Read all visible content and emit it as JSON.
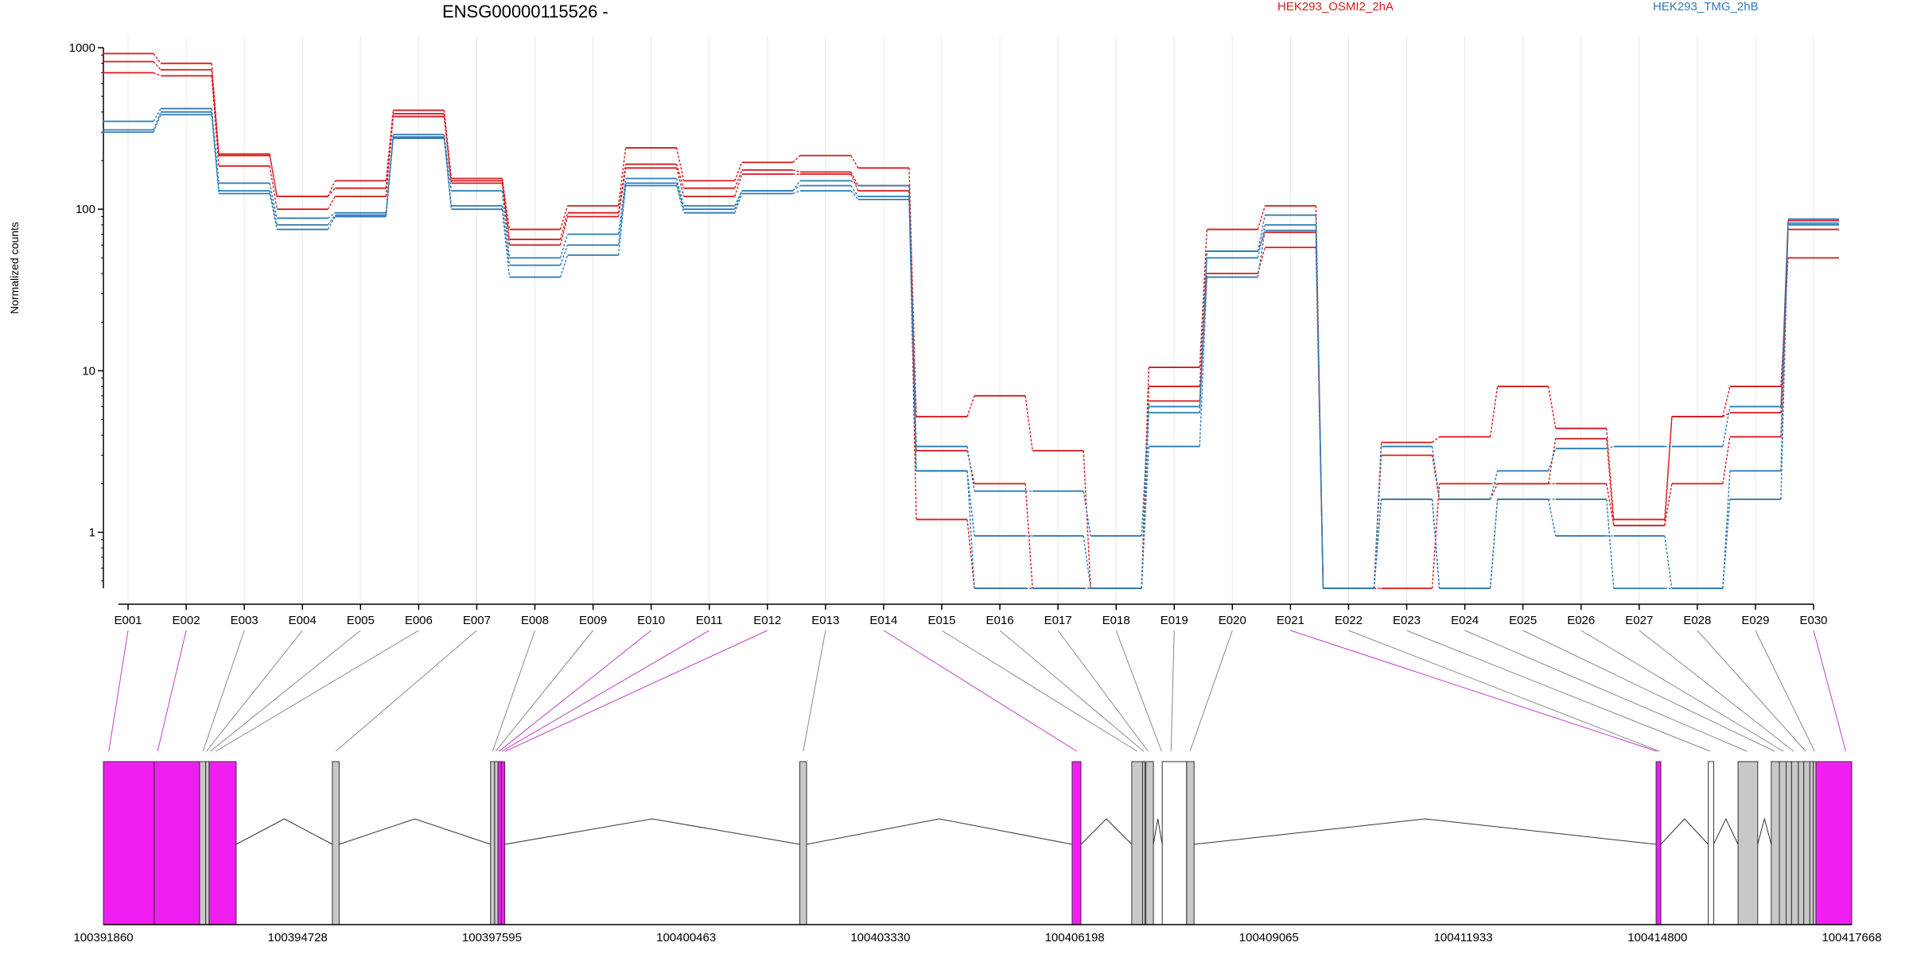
{
  "chart_data": {
    "type": "line",
    "title": "ENSG00000115526 -",
    "ylabel": "Normalized counts",
    "y_scale": "log",
    "y_ticks": [
      "1",
      "10",
      "100",
      "1000"
    ],
    "y_tick_values": [
      1,
      10,
      100,
      1000
    ],
    "ylim": [
      0.45,
      1000
    ],
    "grid": "faint vertical lines at exon bins",
    "legend": [
      {
        "name": "HEK293_OSMI2_2hA",
        "color": "#d7191c"
      },
      {
        "name": "HEK293_TMG_2hB",
        "color": "#2c7bb6"
      }
    ],
    "categories": [
      "E001",
      "E002",
      "E003",
      "E004",
      "E005",
      "E006",
      "E007",
      "E008",
      "E009",
      "E010",
      "E011",
      "E012",
      "E013",
      "E014",
      "E015",
      "E016",
      "E017",
      "E018",
      "E019",
      "E020",
      "E021",
      "E022",
      "E023",
      "E024",
      "E025",
      "E026",
      "E027",
      "E028",
      "E029",
      "E030"
    ],
    "series": [
      {
        "group": "HEK293_OSMI2_2hA",
        "color": "#d7191c",
        "values": [
          920,
          800,
          220,
          120,
          150,
          410,
          155,
          75,
          105,
          240,
          150,
          195,
          215,
          180,
          5.2,
          7.0,
          3.2,
          0.45,
          10.5,
          75,
          105,
          0.45,
          3.6,
          3.9,
          8.0,
          4.4,
          1.2,
          5.2,
          8.0,
          50
        ]
      },
      {
        "group": "HEK293_OSMI2_2hA",
        "color": "#d7191c",
        "values": [
          820,
          730,
          215,
          120,
          135,
          390,
          150,
          65,
          95,
          190,
          135,
          175,
          170,
          140,
          3.2,
          2.0,
          0.45,
          0.45,
          8.0,
          55,
          72,
          0.45,
          3.0,
          1.6,
          2.0,
          3.8,
          1.1,
          5.2,
          5.5,
          85
        ]
      },
      {
        "group": "HEK293_OSMI2_2hA",
        "color": "#d7191c",
        "values": [
          700,
          670,
          185,
          100,
          120,
          375,
          145,
          60,
          90,
          180,
          120,
          165,
          165,
          130,
          1.2,
          0.45,
          0.45,
          0.45,
          6.5,
          40,
          58,
          0.45,
          0.45,
          2.0,
          2.0,
          2.0,
          1.1,
          2.0,
          3.9,
          75
        ]
      },
      {
        "group": "HEK293_TMG_2hB",
        "color": "#2c7bb6",
        "values": [
          350,
          420,
          145,
          88,
          95,
          290,
          130,
          50,
          70,
          155,
          105,
          130,
          150,
          140,
          3.4,
          1.8,
          1.8,
          0.95,
          6.0,
          55,
          92,
          0.45,
          3.4,
          1.6,
          2.4,
          3.3,
          3.4,
          3.4,
          6.0,
          87
        ]
      },
      {
        "group": "HEK293_TMG_2hB",
        "color": "#2c7bb6",
        "values": [
          310,
          400,
          130,
          80,
          92,
          280,
          105,
          45,
          60,
          145,
          100,
          130,
          140,
          120,
          2.4,
          0.95,
          0.95,
          0.45,
          5.5,
          50,
          80,
          0.45,
          1.6,
          0.45,
          1.6,
          0.95,
          0.95,
          0.45,
          1.6,
          80
        ]
      },
      {
        "group": "HEK293_TMG_2hB",
        "color": "#2c7bb6",
        "values": [
          300,
          385,
          125,
          75,
          90,
          275,
          100,
          38,
          52,
          140,
          95,
          125,
          130,
          115,
          2.4,
          0.45,
          0.45,
          0.45,
          3.4,
          38,
          74,
          0.45,
          1.6,
          0.45,
          1.6,
          1.6,
          0.45,
          0.45,
          2.4,
          82
        ]
      }
    ],
    "gene_model": {
      "coordinate_ticks": [
        "100391860",
        "100394728",
        "100397595",
        "100400463",
        "100403330",
        "100406198",
        "100409065",
        "100411933",
        "100414800",
        "100417668"
      ],
      "range": [
        100391860,
        100417668
      ],
      "colors": {
        "significant": "#f01ef0",
        "normal": "#c8c8c8",
        "outline": "#333333"
      },
      "exon_significant": [
        true,
        true,
        false,
        false,
        false,
        false,
        false,
        false,
        false,
        true,
        true,
        true,
        false,
        true,
        false,
        false,
        false,
        false,
        false,
        false,
        true,
        false,
        false,
        false,
        false,
        false,
        false,
        false,
        false,
        true
      ],
      "blocks": [
        {
          "start": 100391860,
          "end": 100392610,
          "fill": "significant"
        },
        {
          "start": 100392610,
          "end": 100393280,
          "fill": "significant"
        },
        {
          "start": 100393280,
          "end": 100393370,
          "fill": "normal"
        },
        {
          "start": 100393370,
          "end": 100393420,
          "fill": "normal"
        },
        {
          "start": 100393420,
          "end": 100393820,
          "fill": "significant"
        },
        {
          "start": 100395240,
          "end": 100395340,
          "fill": "normal"
        },
        {
          "start": 100397575,
          "end": 100397635,
          "fill": "normal"
        },
        {
          "start": 100397635,
          "end": 100397685,
          "fill": "normal"
        },
        {
          "start": 100397685,
          "end": 100397735,
          "fill": "significant"
        },
        {
          "start": 100397735,
          "end": 100397785,
          "fill": "significant"
        },
        {
          "start": 100402140,
          "end": 100402240,
          "fill": "normal"
        },
        {
          "start": 100406160,
          "end": 100406290,
          "fill": "significant"
        },
        {
          "start": 100407040,
          "end": 100407200,
          "fill": "normal"
        },
        {
          "start": 100407200,
          "end": 100407230,
          "fill": "normal"
        },
        {
          "start": 100407250,
          "end": 100407360,
          "fill": "normal"
        },
        {
          "start": 100407490,
          "end": 100407850,
          "fill": "none"
        },
        {
          "start": 100407850,
          "end": 100407960,
          "fill": "normal"
        },
        {
          "start": 100414780,
          "end": 100414850,
          "fill": "significant"
        },
        {
          "start": 100415550,
          "end": 100415630,
          "fill": "none"
        },
        {
          "start": 100415990,
          "end": 100416280,
          "fill": "normal"
        },
        {
          "start": 100416480,
          "end": 100416600,
          "fill": "normal"
        },
        {
          "start": 100416600,
          "end": 100416700,
          "fill": "normal"
        },
        {
          "start": 100416700,
          "end": 100416780,
          "fill": "normal"
        },
        {
          "start": 100416780,
          "end": 100416880,
          "fill": "normal"
        },
        {
          "start": 100416880,
          "end": 100416960,
          "fill": "normal"
        },
        {
          "start": 100416960,
          "end": 100417050,
          "fill": "normal"
        },
        {
          "start": 100417050,
          "end": 100417100,
          "fill": "normal"
        },
        {
          "start": 100417100,
          "end": 100417140,
          "fill": "normal"
        },
        {
          "start": 100417140,
          "end": 100417668,
          "fill": "significant"
        }
      ],
      "exon_positions": [
        100391940,
        100392660,
        100393330,
        100393380,
        100393440,
        100393520,
        100395290,
        100397605,
        100397650,
        100397700,
        100397740,
        100397790,
        100402190,
        100406230,
        100407120,
        100407215,
        100407280,
        100407480,
        100407620,
        100407900,
        100414790,
        100414830,
        100415580,
        100416120,
        100416530,
        100416660,
        100416810,
        100416990,
        100417120,
        100417580
      ]
    }
  }
}
